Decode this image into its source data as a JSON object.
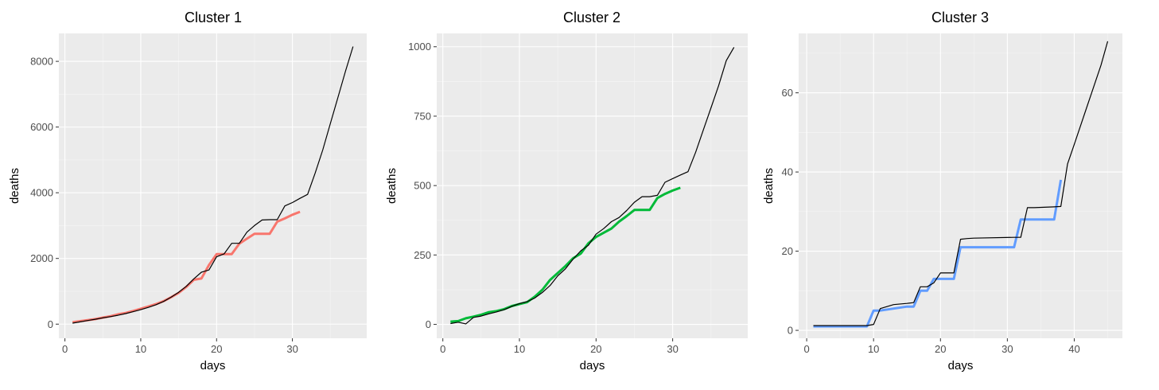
{
  "chart_data": [
    {
      "type": "line",
      "title": "Cluster 1",
      "xlabel": "days",
      "ylabel": "deaths",
      "xlim": [
        -0.8,
        39.8
      ],
      "ylim": [
        -430,
        8850
      ],
      "x_ticks": [
        0,
        10,
        20,
        30
      ],
      "x_minor_ticks": [
        5,
        15,
        25,
        35
      ],
      "y_ticks": [
        0,
        2000,
        4000,
        6000,
        8000
      ],
      "y_minor_ticks": [
        1000,
        3000,
        5000,
        7000
      ],
      "grid": true,
      "series": [
        {
          "color": "#f8766d",
          "line_width": 3,
          "x": [
            1,
            2,
            3,
            4,
            5,
            6,
            7,
            8,
            9,
            10,
            11,
            12,
            13,
            14,
            15,
            16,
            17,
            18,
            19,
            20,
            21,
            22,
            23,
            24,
            25,
            26,
            27,
            28,
            29,
            30,
            31
          ],
          "y": [
            60,
            90,
            120,
            155,
            200,
            240,
            300,
            340,
            400,
            470,
            540,
            610,
            700,
            820,
            950,
            1130,
            1350,
            1390,
            1800,
            2130,
            2130,
            2130,
            2450,
            2600,
            2750,
            2750,
            2750,
            3120,
            3220,
            3330,
            3420
          ]
        },
        {
          "color": "#000000",
          "line_width": 1.2,
          "x": [
            1,
            2,
            3,
            4,
            5,
            6,
            7,
            8,
            9,
            10,
            11,
            12,
            13,
            14,
            15,
            16,
            17,
            18,
            19,
            20,
            21,
            22,
            23,
            24,
            25,
            26,
            27,
            28,
            29,
            30,
            31,
            32,
            33,
            34,
            35,
            36,
            37,
            38
          ],
          "y": [
            30,
            70,
            110,
            150,
            190,
            230,
            270,
            320,
            380,
            440,
            510,
            590,
            690,
            820,
            970,
            1150,
            1380,
            1580,
            1650,
            2050,
            2140,
            2460,
            2460,
            2800,
            3000,
            3170,
            3180,
            3180,
            3600,
            3700,
            3830,
            3950,
            4600,
            5300,
            6100,
            6900,
            7700,
            8450
          ]
        }
      ]
    },
    {
      "type": "line",
      "title": "Cluster 2",
      "xlabel": "days",
      "ylabel": "deaths",
      "xlim": [
        -0.8,
        39.8
      ],
      "ylim": [
        -50,
        1048
      ],
      "x_ticks": [
        0,
        10,
        20,
        30
      ],
      "x_minor_ticks": [
        5,
        15,
        25,
        35
      ],
      "y_ticks": [
        0,
        250,
        500,
        750,
        1000
      ],
      "y_minor_ticks": [
        125,
        375,
        625,
        875
      ],
      "grid": true,
      "series": [
        {
          "color": "#00ba38",
          "line_width": 3,
          "x": [
            1,
            2,
            3,
            4,
            5,
            6,
            7,
            8,
            9,
            10,
            11,
            12,
            13,
            14,
            15,
            16,
            17,
            18,
            19,
            20,
            21,
            22,
            23,
            24,
            25,
            26,
            27,
            28,
            29,
            30,
            31
          ],
          "y": [
            10,
            12,
            22,
            28,
            35,
            44,
            48,
            55,
            66,
            73,
            80,
            100,
            125,
            160,
            185,
            210,
            238,
            255,
            292,
            315,
            330,
            345,
            370,
            390,
            412,
            412,
            412,
            455,
            470,
            482,
            492
          ]
        },
        {
          "color": "#000000",
          "line_width": 1.2,
          "x": [
            1,
            2,
            3,
            4,
            5,
            6,
            7,
            8,
            9,
            10,
            11,
            12,
            13,
            14,
            15,
            16,
            17,
            18,
            19,
            20,
            21,
            22,
            23,
            24,
            25,
            26,
            27,
            28,
            29,
            30,
            31,
            32,
            33,
            34,
            35,
            36,
            37,
            38
          ],
          "y": [
            3,
            8,
            2,
            25,
            30,
            38,
            45,
            53,
            65,
            75,
            82,
            95,
            115,
            140,
            175,
            200,
            235,
            265,
            285,
            325,
            345,
            370,
            385,
            410,
            440,
            460,
            460,
            465,
            512,
            525,
            538,
            550,
            620,
            700,
            780,
            860,
            950,
            998
          ]
        }
      ]
    },
    {
      "type": "line",
      "title": "Cluster 3",
      "xlabel": "days",
      "ylabel": "deaths",
      "xlim": [
        -1.2,
        47.2
      ],
      "ylim": [
        -2,
        75
      ],
      "x_ticks": [
        0,
        10,
        20,
        30,
        40
      ],
      "x_minor_ticks": [
        5,
        15,
        25,
        35,
        45
      ],
      "y_ticks": [
        0,
        20,
        40,
        60
      ],
      "y_minor_ticks": [
        10,
        30,
        50,
        70
      ],
      "grid": true,
      "series": [
        {
          "color": "#619cff",
          "line_width": 3,
          "x": [
            1,
            9,
            10,
            11,
            15,
            16,
            17,
            18,
            19,
            22,
            23,
            31,
            32,
            37,
            38
          ],
          "y": [
            1,
            1,
            5,
            5,
            6,
            6,
            10,
            10,
            13,
            13,
            21,
            21,
            28,
            28,
            38
          ]
        },
        {
          "color": "#000000",
          "line_width": 1.2,
          "x": [
            1,
            9,
            10,
            11,
            12,
            13,
            15,
            16,
            17,
            18,
            19,
            20,
            21,
            22,
            23,
            24,
            25,
            31,
            32,
            33,
            34,
            37,
            38,
            39,
            40,
            41,
            42,
            43,
            44,
            45
          ],
          "y": [
            1.2,
            1.2,
            1.5,
            5.5,
            6,
            6.5,
            6.8,
            7,
            11,
            11,
            12,
            14.5,
            14.5,
            14.5,
            23,
            23.2,
            23.3,
            23.5,
            23.5,
            31,
            31,
            31.2,
            31.3,
            42,
            47,
            52,
            57,
            62,
            67,
            73
          ]
        }
      ]
    }
  ]
}
